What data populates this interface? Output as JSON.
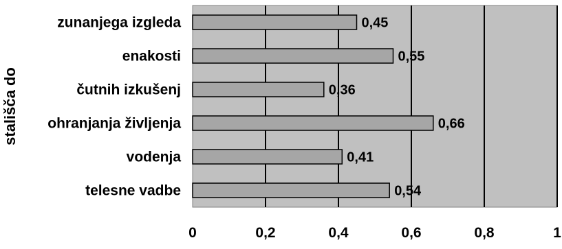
{
  "chart_data": {
    "type": "bar",
    "orientation": "horizontal",
    "title": "",
    "xlabel": "",
    "ylabel": "stališča do",
    "categories": [
      "zunanjega izgleda",
      "enakosti",
      "čutnih izkušenj",
      "ohranjanja življenja",
      "vodenja",
      "telesne vadbe"
    ],
    "values": [
      0.45,
      0.55,
      0.36,
      0.66,
      0.41,
      0.54
    ],
    "value_labels": [
      "0,45",
      "0,55",
      "0,36",
      "0,66",
      "0,41",
      "0,54"
    ],
    "xlim": [
      0,
      1
    ],
    "x_ticks": [
      0,
      0.2,
      0.4,
      0.6,
      0.8,
      1
    ],
    "x_tick_labels": [
      "0",
      "0,2",
      "0,4",
      "0,6",
      "0,8",
      "1"
    ],
    "grid": "vertical",
    "legend": "none",
    "colors": {
      "plot_background": "#c0c0c0",
      "bar_fill": "#a6a6a6",
      "bar_stroke": "#000000",
      "gridline": "#000000"
    }
  }
}
